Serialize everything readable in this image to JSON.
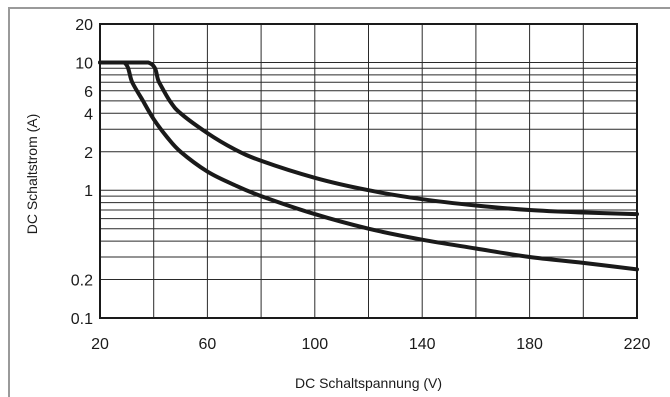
{
  "chart_data": {
    "type": "line",
    "title": "",
    "xlabel": "DC Schaltspannung (V)",
    "ylabel": "DC Schaltstrom (A)",
    "xlim": [
      20,
      220
    ],
    "ylim": [
      0.1,
      20
    ],
    "yscale": "log",
    "grid": true,
    "x_ticks": [
      20,
      60,
      100,
      140,
      180,
      220
    ],
    "x_tick_labels": [
      "20",
      "60",
      "100",
      "140",
      "180",
      "220"
    ],
    "y_ticks": [
      0.1,
      0.2,
      1,
      2,
      4,
      6,
      10,
      20
    ],
    "y_tick_labels": [
      "0.1",
      "0.2",
      "1",
      "2",
      "4",
      "6",
      "10",
      "20"
    ],
    "series": [
      {
        "x": [
          20,
          29,
          32,
          36,
          40,
          45,
          50,
          60,
          70,
          80,
          100,
          120,
          140,
          160,
          180,
          200,
          220
        ],
        "y": [
          10,
          10,
          7,
          5,
          3.6,
          2.6,
          2.0,
          1.4,
          1.1,
          0.9,
          0.65,
          0.5,
          0.41,
          0.35,
          0.3,
          0.27,
          0.24
        ]
      },
      {
        "x": [
          20,
          38,
          42,
          46,
          50,
          60,
          70,
          80,
          100,
          120,
          140,
          160,
          180,
          200,
          220
        ],
        "y": [
          10,
          10,
          7,
          5,
          4,
          2.8,
          2.1,
          1.7,
          1.25,
          1.0,
          0.85,
          0.76,
          0.7,
          0.67,
          0.65
        ]
      }
    ]
  }
}
